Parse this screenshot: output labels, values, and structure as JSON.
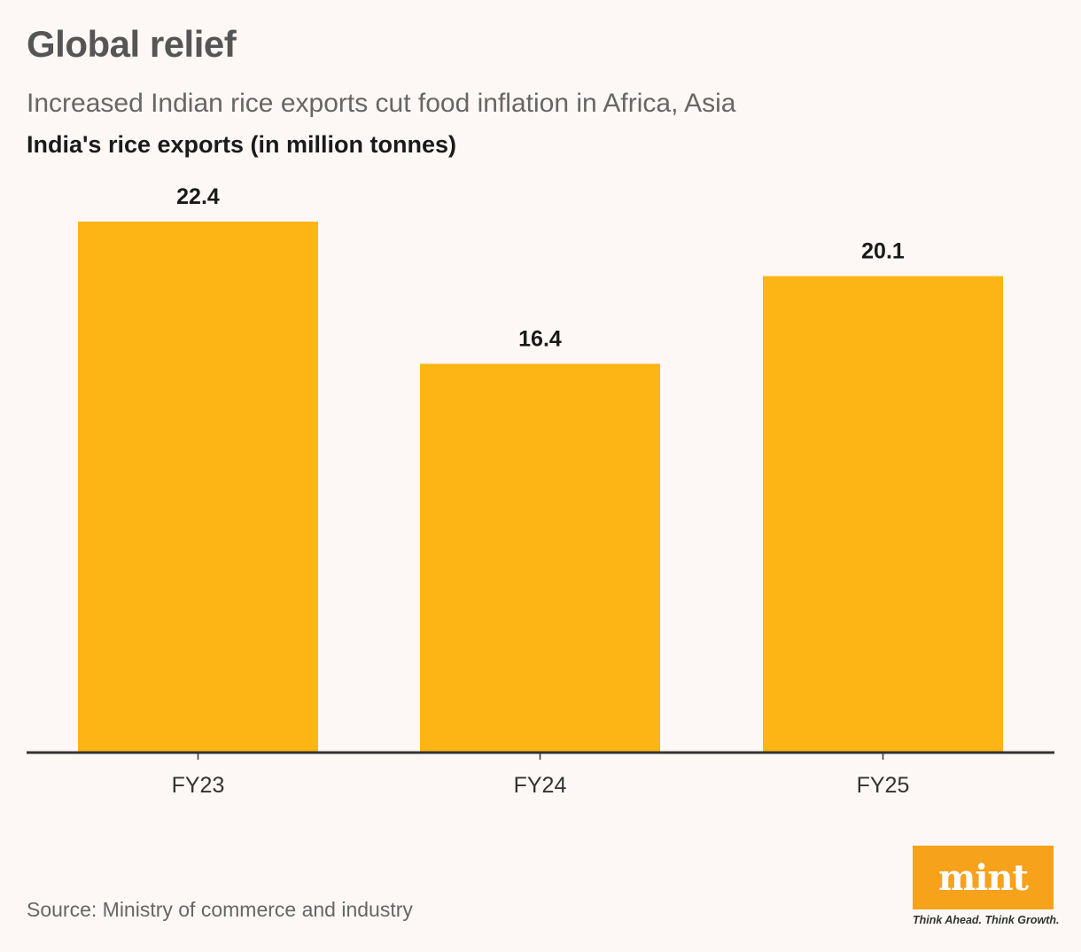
{
  "header": {
    "title": "Global relief",
    "subtitle": "Increased Indian rice exports cut food inflation in Africa, Asia"
  },
  "chart_data": {
    "type": "bar",
    "categories": [
      "FY23",
      "FY24",
      "FY25"
    ],
    "values": [
      22.4,
      16.4,
      20.1
    ],
    "title": "Global relief",
    "subtitle": "Increased Indian rice exports cut food inflation in Africa, Asia",
    "xlabel": "",
    "ylabel": "India's rice exports (in million tonnes)",
    "ylim": [
      0,
      24
    ],
    "grid": false,
    "legend": "none",
    "bar_color": "#fdb515",
    "axis_color": "#333333"
  },
  "footer": {
    "source": "Source: Ministry of commerce and industry"
  },
  "logo": {
    "word": "mint",
    "tagline": "Think Ahead. Think Growth.",
    "color": "#f7a21b"
  }
}
